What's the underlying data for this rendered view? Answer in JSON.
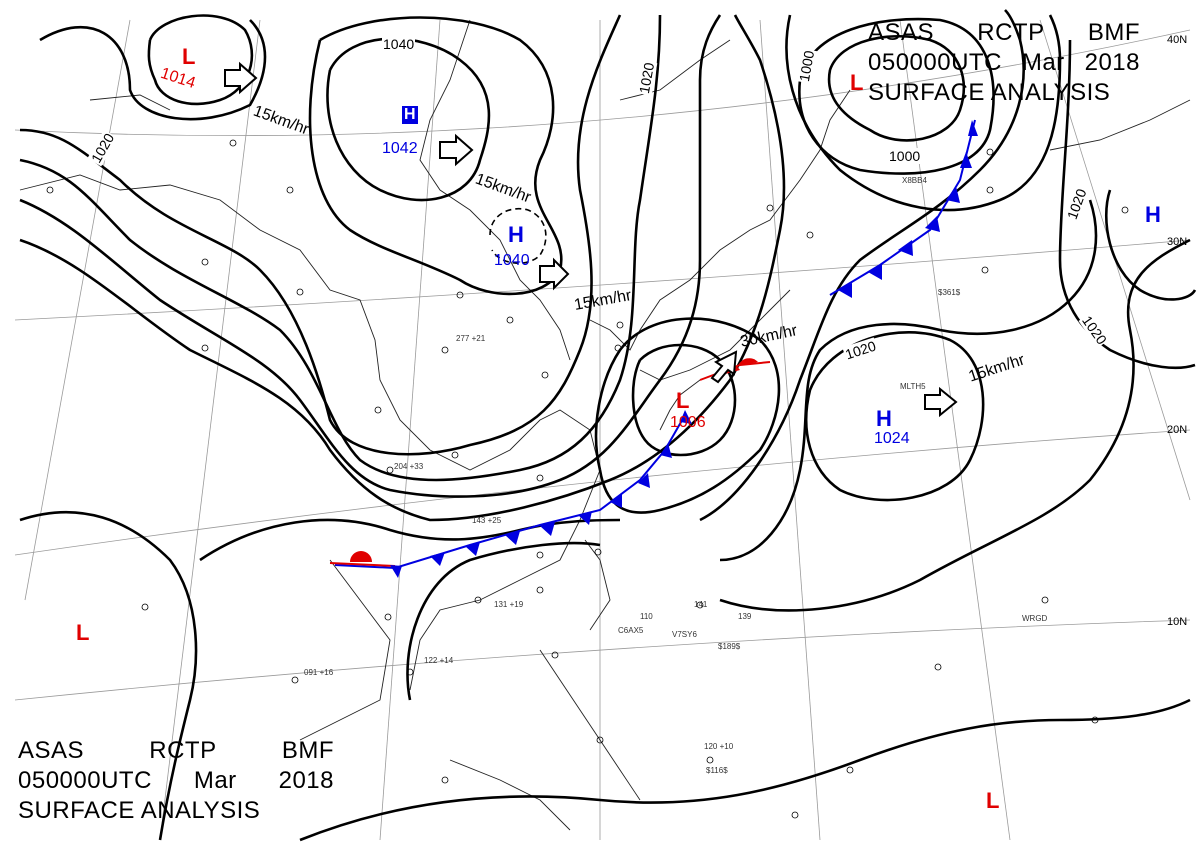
{
  "title": {
    "line1": [
      "ASAS",
      "RCTP",
      "BMF"
    ],
    "line2": [
      "050000UTC",
      "Mar",
      "2018"
    ],
    "line3": "SURFACE  ANALYSIS"
  },
  "pressure_systems": [
    {
      "id": "low-nw",
      "type": "L",
      "pressure": "1014",
      "color": "#e00000"
    },
    {
      "id": "high-north",
      "type": "H",
      "pressure": "1042",
      "color": "#0000e0"
    },
    {
      "id": "high-central",
      "type": "H",
      "pressure": "1040",
      "color": "#0000e0"
    },
    {
      "id": "low-ne",
      "type": "L",
      "pressure": "",
      "color": "#e00000"
    },
    {
      "id": "low-japan",
      "type": "L",
      "pressure": "1006",
      "color": "#e00000"
    },
    {
      "id": "high-pacific",
      "type": "H",
      "pressure": "1024",
      "color": "#0000e0"
    },
    {
      "id": "high-east",
      "type": "H",
      "pressure": "",
      "color": "#0000e0"
    },
    {
      "id": "low-sw",
      "type": "L",
      "pressure": "",
      "color": "#e00000"
    },
    {
      "id": "low-se",
      "type": "L",
      "pressure": "",
      "color": "#e00000"
    }
  ],
  "isobar_labels": [
    "1040",
    "1020",
    "1020",
    "1000",
    "1000",
    "1020",
    "1020",
    "1020"
  ],
  "motion_labels": [
    "15km/hr",
    "15km/hr",
    "15km/hr",
    "30km/hr",
    "15km/hr"
  ],
  "latitude_labels": [
    "40N",
    "30N",
    "20N",
    "10N"
  ],
  "station_samples": [
    "204 +33",
    "277 +21",
    "143 +25",
    "131 +19",
    "122 +14",
    "120 +10",
    "091 +16",
    "110",
    "141",
    "139",
    "$189$",
    "C6AX5",
    "V7SY6",
    "WRGD",
    "MLTH5",
    "X8BB4",
    "$361$",
    "$116$"
  ],
  "colors": {
    "front_cold": "#0000e0",
    "front_warm": "#e00000",
    "isobar": "#000000",
    "coast": "#222222"
  }
}
